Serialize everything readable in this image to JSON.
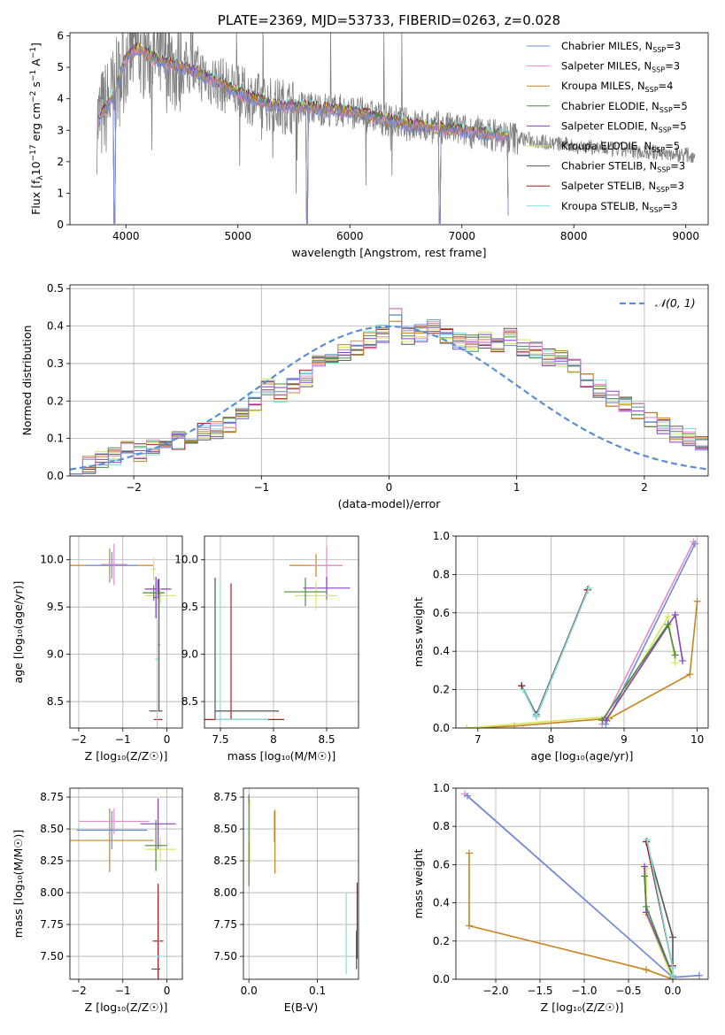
{
  "figure": {
    "title": "PLATE=2369, MJD=53733, FIBERID=0263, z=0.028"
  },
  "legend_labels": [
    "Chabrier MILES, N_{SSP}=3",
    "Salpeter MILES, N_{SSP}=3",
    "Kroupa MILES, N_{SSP}=4",
    "Chabrier ELODIE, N_{SSP}=5",
    "Salpeter ELODIE, N_{SSP}=5",
    "Kroupa ELODIE, N_{SSP}=5",
    "Chabrier STELIB, N_{SSP}=3",
    "Salpeter STELIB, N_{SSP}=3",
    "Kroupa STELIB, N_{SSP}=3"
  ],
  "colors": [
    "#6b8fd6",
    "#e08ccb",
    "#c8841f",
    "#4d8a3f",
    "#8a3fc2",
    "#d4e85c",
    "#555555",
    "#a31f1f",
    "#80dfdf"
  ],
  "data_color": "#808080",
  "normal_color": "#5b8fd4",
  "chart_data": [
    {
      "id": "spectrum",
      "type": "line",
      "title": "PLATE=2369, MJD=53733, FIBERID=0263, z=0.028",
      "xlabel": "wavelength [Angstrom, rest frame]",
      "ylabel": "Flux [f_λ 10^{-17} erg cm^{-2} s^{-1} A^{-1}]",
      "xlim": [
        3500,
        9200
      ],
      "ylim": [
        0,
        6.1
      ],
      "xticks": [
        4000,
        5000,
        6000,
        7000,
        8000,
        9000
      ],
      "yticks": [
        0,
        1,
        2,
        3,
        4,
        5,
        6
      ],
      "grid": false,
      "legend": "upper right",
      "observed": {
        "wavelength_range": [
          3740,
          9080
        ],
        "continuum": [
          [
            3740,
            3.2
          ],
          [
            3900,
            4.2
          ],
          [
            4000,
            5.3
          ],
          [
            4100,
            5.6
          ],
          [
            4300,
            5.2
          ],
          [
            4600,
            4.9
          ],
          [
            5000,
            4.2
          ],
          [
            5300,
            3.8
          ],
          [
            5700,
            3.7
          ],
          [
            6000,
            3.6
          ],
          [
            6500,
            3.2
          ],
          [
            7000,
            3.0
          ],
          [
            7500,
            2.75
          ],
          [
            8000,
            2.5
          ],
          [
            8500,
            2.35
          ],
          [
            9080,
            2.2
          ]
        ]
      },
      "models_end_at": 7420,
      "dropouts": [
        [
          3900,
          0.05
        ],
        [
          5620,
          0.05
        ],
        [
          6800,
          0.05
        ],
        [
          7420,
          0.3
        ]
      ]
    },
    {
      "id": "residuals",
      "type": "histogram",
      "xlabel": "(data-model)/error",
      "ylabel": "Normed distribution",
      "xlim": [
        -2.5,
        2.5
      ],
      "ylim": [
        0,
        0.51
      ],
      "xticks": [
        -2,
        -1,
        0,
        1,
        2
      ],
      "yticks": [
        0.0,
        0.1,
        0.2,
        0.3,
        0.4,
        0.5
      ],
      "grid": true,
      "legend": "upper right",
      "legend_label": "𝒩(0, 1)",
      "bin_width": 0.1,
      "bin_start": -2.5,
      "values": [
        0.024,
        0.031,
        0.044,
        0.051,
        0.067,
        0.061,
        0.072,
        0.079,
        0.093,
        0.104,
        0.117,
        0.124,
        0.141,
        0.163,
        0.198,
        0.236,
        0.221,
        0.243,
        0.262,
        0.297,
        0.312,
        0.327,
        0.347,
        0.362,
        0.381,
        0.431,
        0.372,
        0.381,
        0.392,
        0.378,
        0.361,
        0.352,
        0.364,
        0.355,
        0.371,
        0.339,
        0.332,
        0.319,
        0.311,
        0.287,
        0.256,
        0.233,
        0.204,
        0.195,
        0.171,
        0.151,
        0.131,
        0.112,
        0.102,
        0.084,
        0.073,
        0.061,
        0.051,
        0.044,
        0.038,
        0.032,
        0.027,
        0.024,
        0.021,
        0.022
      ]
    },
    {
      "id": "age-vs-z",
      "type": "errorbar",
      "xlabel": "Z [log₁₀(Z/Z☉)]",
      "ylabel": "age  [log₁₀(age/yr)]",
      "xlim": [
        -2.2,
        0.35
      ],
      "ylim": [
        8.22,
        10.25
      ],
      "xticks": [
        -2,
        -1,
        0
      ],
      "yticks": [
        8.5,
        9.0,
        9.5,
        10.0
      ],
      "grid": true,
      "points": [
        {
          "series": 2,
          "x": -1.3,
          "y": 9.94,
          "xerr": 1.0,
          "yerr": 0.18
        },
        {
          "series": 0,
          "x": -1.25,
          "y": 9.94,
          "xerr": 0.6,
          "yerr": 0.14
        },
        {
          "series": 1,
          "x": -1.2,
          "y": 9.95,
          "xerr": 0.3,
          "yerr": 0.22
        },
        {
          "series": 4,
          "x": -0.2,
          "y": 9.69,
          "xerr": 0.3,
          "yerr": 0.1
        },
        {
          "series": 5,
          "x": -0.15,
          "y": 9.62,
          "xerr": 0.35,
          "yerr": 0.08
        },
        {
          "series": 3,
          "x": -0.3,
          "y": 9.65,
          "xerr": 0.25,
          "yerr": 0.08
        },
        {
          "series": 4,
          "x": -0.25,
          "y": 9.6,
          "xerr": 0.05,
          "yerr": 0.22
        },
        {
          "series": 5,
          "x": -0.3,
          "y": 9.9,
          "xerr": 0.05,
          "yerr": 0.12
        },
        {
          "series": 6,
          "x": -0.25,
          "y": 8.4,
          "xerr": 0.15,
          "yerr": 0.0
        },
        {
          "series": 7,
          "x": -0.2,
          "y": 8.31,
          "xerr": 0.1,
          "yerr": 0.0
        },
        {
          "series": 8,
          "x": -0.22,
          "y": 8.95,
          "xerr": 0.05,
          "yerr": 0.85
        },
        {
          "series": 6,
          "x": -0.18,
          "y": 9.1,
          "xerr": 0.02,
          "yerr": 0.7
        }
      ]
    },
    {
      "id": "age-vs-mass",
      "type": "errorbar",
      "xlabel": "mass [log₁₀(M/M☉)]",
      "ylabel": "",
      "xlim": [
        7.35,
        8.8
      ],
      "ylim": [
        8.22,
        10.25
      ],
      "xticks": [
        7.5,
        8.0,
        8.5
      ],
      "yticks": [
        8.5,
        9.0,
        9.5,
        10.0
      ],
      "grid": true,
      "points": [
        {
          "series": 2,
          "x": 8.4,
          "y": 9.94,
          "xerr": 0.25,
          "yerr": 0.12
        },
        {
          "series": 1,
          "x": 8.5,
          "y": 9.94,
          "xerr": 0.15,
          "yerr": 0.2
        },
        {
          "series": 4,
          "x": 8.5,
          "y": 9.7,
          "xerr": 0.22,
          "yerr": 0.12
        },
        {
          "series": 5,
          "x": 8.4,
          "y": 9.62,
          "xerr": 0.2,
          "yerr": 0.15
        },
        {
          "series": 3,
          "x": 8.3,
          "y": 9.66,
          "xerr": 0.2,
          "yerr": 0.15
        },
        {
          "series": 6,
          "x": 7.45,
          "y": 9.06,
          "xerr": 0.0,
          "yerr": 0.75
        },
        {
          "series": 8,
          "x": 7.5,
          "y": 9.04,
          "xerr": 0.0,
          "yerr": 0.75
        },
        {
          "series": 7,
          "x": 7.6,
          "y": 9.03,
          "xerr": 0.0,
          "yerr": 0.72
        },
        {
          "series": 6,
          "x": 7.75,
          "y": 8.4,
          "xerr": 0.3,
          "yerr": 0.0
        },
        {
          "series": 7,
          "x": 7.7,
          "y": 8.31,
          "xerr": 0.4,
          "yerr": 0.0
        },
        {
          "series": 8,
          "x": 7.7,
          "y": 8.31,
          "xerr": 0.25,
          "yerr": 0.0
        }
      ]
    },
    {
      "id": "mass-weight-vs-age",
      "type": "line",
      "xlabel": "age  [log₁₀(age/yr)]",
      "ylabel": "mass weight",
      "xlim": [
        6.7,
        10.15
      ],
      "ylim": [
        0,
        1.0
      ],
      "xticks": [
        7,
        8,
        9,
        10
      ],
      "yticks": [
        0.0,
        0.2,
        0.4,
        0.6,
        0.8,
        1.0
      ],
      "grid": true,
      "series": [
        {
          "series": 2,
          "x": [
            6.85,
            7.5,
            8.8,
            9.9,
            10.0
          ],
          "y": [
            0.0,
            0.01,
            0.05,
            0.28,
            0.66
          ]
        },
        {
          "series": 1,
          "x": [
            8.7,
            9.95
          ],
          "y": [
            0.02,
            0.97
          ]
        },
        {
          "series": 0,
          "x": [
            8.75,
            9.97
          ],
          "y": [
            0.02,
            0.96
          ]
        },
        {
          "series": 5,
          "x": [
            6.85,
            8.8,
            9.6,
            9.7
          ],
          "y": [
            0.0,
            0.06,
            0.58,
            0.34
          ]
        },
        {
          "series": 4,
          "x": [
            8.75,
            9.7,
            9.8
          ],
          "y": [
            0.04,
            0.59,
            0.35
          ]
        },
        {
          "series": 3,
          "x": [
            8.7,
            9.6,
            9.7
          ],
          "y": [
            0.04,
            0.54,
            0.38
          ]
        },
        {
          "series": 6,
          "x": [
            7.6,
            7.8,
            8.5
          ],
          "y": [
            0.22,
            0.07,
            0.72
          ]
        },
        {
          "series": 7,
          "x": [
            7.6,
            7.8,
            8.5
          ],
          "y": [
            0.22,
            0.06,
            0.72
          ]
        },
        {
          "series": 8,
          "x": [
            7.62,
            7.8,
            8.52
          ],
          "y": [
            0.2,
            0.06,
            0.73
          ]
        }
      ]
    },
    {
      "id": "mass-vs-z",
      "type": "errorbar",
      "xlabel": "Z [log₁₀(Z/Z☉)]",
      "ylabel": "mass [log₁₀(M/M☉)]",
      "xlim": [
        -2.2,
        0.35
      ],
      "ylim": [
        7.32,
        8.82
      ],
      "xticks": [
        -2,
        -1,
        0
      ],
      "yticks": [
        7.5,
        7.75,
        8.0,
        8.25,
        8.5,
        8.75
      ],
      "grid": true,
      "points": [
        {
          "series": 2,
          "x": -1.3,
          "y": 8.41,
          "xerr": 1.0,
          "yerr": 0.25
        },
        {
          "series": 0,
          "x": -1.25,
          "y": 8.49,
          "xerr": 0.8,
          "yerr": 0.15
        },
        {
          "series": 1,
          "x": -1.2,
          "y": 8.56,
          "xerr": 0.8,
          "yerr": 0.1
        },
        {
          "series": 4,
          "x": -0.2,
          "y": 8.54,
          "xerr": 0.4,
          "yerr": 0.2
        },
        {
          "series": 5,
          "x": -0.15,
          "y": 8.34,
          "xerr": 0.35,
          "yerr": 0.1
        },
        {
          "series": 3,
          "x": -0.25,
          "y": 8.37,
          "xerr": 0.25,
          "yerr": 0.2
        },
        {
          "series": 7,
          "x": -0.2,
          "y": 7.62,
          "xerr": 0.12,
          "yerr": 0.45
        },
        {
          "series": 8,
          "x": -0.18,
          "y": 7.5,
          "xerr": 0.1,
          "yerr": 0.5
        },
        {
          "series": 6,
          "x": -0.25,
          "y": 7.4,
          "xerr": 0.1,
          "yerr": 0.0
        }
      ]
    },
    {
      "id": "mass-vs-ebv",
      "type": "errorbar",
      "xlabel": "E(B-V)",
      "ylabel": "",
      "xlim": [
        -0.008,
        0.16
      ],
      "ylim": [
        7.32,
        8.82
      ],
      "xticks": [
        0.0,
        0.1
      ],
      "yticks": [
        7.5,
        7.75,
        8.0,
        8.25,
        8.5,
        8.75
      ],
      "grid": true,
      "points": [
        {
          "series": 4,
          "x": 0.0,
          "y": 8.69,
          "xerr": 0.0,
          "yerr": 0.08
        },
        {
          "series": 5,
          "x": 0.001,
          "y": 8.48,
          "xerr": 0.0,
          "yerr": 0.25
        },
        {
          "series": 3,
          "x": 0.0,
          "y": 8.4,
          "xerr": 0.0,
          "yerr": 0.35
        },
        {
          "series": 0,
          "x": 0.0,
          "y": 8.55,
          "xerr": 0.0,
          "yerr": 0.15
        },
        {
          "series": 1,
          "x": 0.037,
          "y": 8.52,
          "xerr": 0.0,
          "yerr": 0.12
        },
        {
          "series": 2,
          "x": 0.038,
          "y": 8.4,
          "xerr": 0.0,
          "yerr": 0.25
        },
        {
          "series": 8,
          "x": 0.142,
          "y": 7.68,
          "xerr": 0.0,
          "yerr": 0.32
        },
        {
          "series": 7,
          "x": 0.158,
          "y": 7.78,
          "xerr": 0.0,
          "yerr": 0.3
        },
        {
          "series": 6,
          "x": 0.157,
          "y": 7.55,
          "xerr": 0.0,
          "yerr": 0.15
        }
      ]
    },
    {
      "id": "mass-weight-vs-z",
      "type": "line",
      "xlabel": "Z [log₁₀(Z/Z☉)]",
      "ylabel": "mass weight",
      "xlim": [
        -2.45,
        0.4
      ],
      "ylim": [
        0,
        1.0
      ],
      "xticks": [
        -2.0,
        -1.5,
        -1.0,
        -0.5,
        0.0
      ],
      "yticks": [
        0.0,
        0.2,
        0.4,
        0.6,
        0.8,
        1.0
      ],
      "grid": true,
      "series": [
        {
          "series": 2,
          "x": [
            -2.3,
            -2.3,
            -0.3,
            0.0
          ],
          "y": [
            0.66,
            0.28,
            0.05,
            0.0
          ]
        },
        {
          "series": 1,
          "x": [
            -2.35,
            0.0,
            0.3
          ],
          "y": [
            0.97,
            0.01,
            0.02
          ]
        },
        {
          "series": 0,
          "x": [
            -2.32,
            0.0,
            0.3
          ],
          "y": [
            0.96,
            0.01,
            0.02
          ]
        },
        {
          "series": 5,
          "x": [
            -0.3,
            -0.3,
            0.0
          ],
          "y": [
            0.58,
            0.34,
            0.0
          ]
        },
        {
          "series": 4,
          "x": [
            -0.32,
            -0.3,
            0.0
          ],
          "y": [
            0.59,
            0.35,
            0.02
          ]
        },
        {
          "series": 3,
          "x": [
            -0.32,
            -0.3,
            0.0
          ],
          "y": [
            0.54,
            0.38,
            0.02
          ]
        },
        {
          "series": 6,
          "x": [
            -0.3,
            0.0,
            0.0
          ],
          "y": [
            0.72,
            0.22,
            0.07
          ]
        },
        {
          "series": 7,
          "x": [
            -0.3,
            0.0,
            0.0
          ],
          "y": [
            0.72,
            0.06,
            0.07
          ]
        },
        {
          "series": 8,
          "x": [
            -0.29,
            0.0,
            0.0
          ],
          "y": [
            0.73,
            0.06,
            0.02
          ]
        }
      ]
    }
  ]
}
